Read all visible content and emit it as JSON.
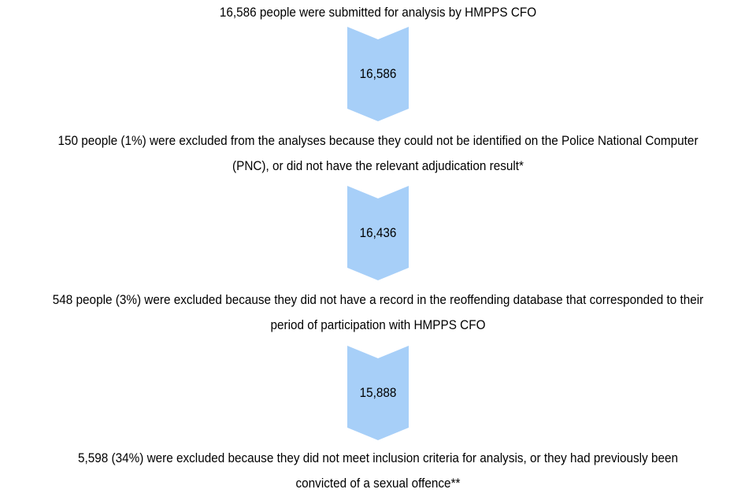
{
  "flow": {
    "steps": [
      {
        "text": "16,586 people were submitted for analysis by HMPPS CFO"
      },
      {
        "text": "150 people (1%) were excluded from the analyses because they could not be identified on the Police National Computer (PNC), or did not have the relevant adjudication result*"
      },
      {
        "text": "548 people (3%) were excluded because they did not have a record in the reoffending database that corresponded to their period of participation with HMPPS CFO"
      },
      {
        "text": "5,598 (34%) were excluded because they did not meet inclusion criteria for analysis, or they had previously been convicted of a sexual offence**"
      }
    ],
    "arrows": [
      {
        "label": "16,586"
      },
      {
        "label": "16,436"
      },
      {
        "label": "15,888"
      }
    ]
  },
  "colors": {
    "arrow_fill": "#a7cff8",
    "text": "#000000"
  }
}
